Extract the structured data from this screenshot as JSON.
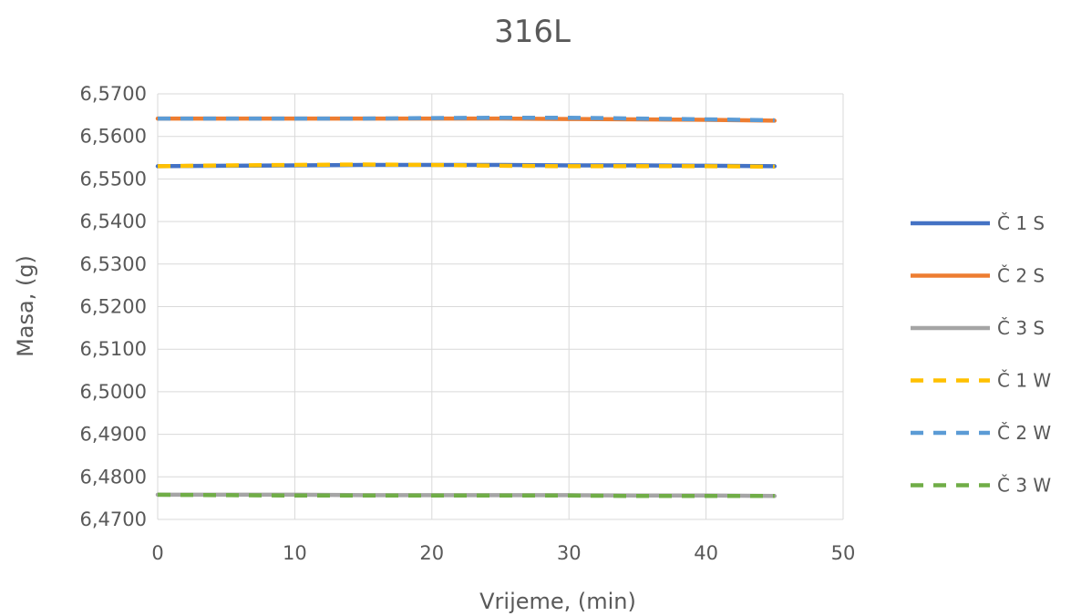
{
  "chart_data": {
    "type": "line",
    "title": "316L",
    "xlabel": "Vrijeme, (min)",
    "ylabel": "Masa, (g)",
    "xlim": [
      0,
      50
    ],
    "ylim": [
      6.47,
      6.57
    ],
    "xticks": [
      "0",
      "10",
      "20",
      "30",
      "40",
      "50"
    ],
    "yticks": [
      "6,4700",
      "6,4800",
      "6,4900",
      "6,5000",
      "6,5100",
      "6,5200",
      "6,5300",
      "6,5400",
      "6,5500",
      "6,5600",
      "6,5700"
    ],
    "grid": true,
    "legend_position": "right",
    "series": [
      {
        "name": "Č 1 S",
        "color": "#4472C4",
        "style": "solid",
        "x": [
          0,
          5,
          10,
          15,
          20,
          25,
          30,
          35,
          40,
          45
        ],
        "y": [
          6.553,
          6.5531,
          6.5532,
          6.5533,
          6.5533,
          6.5533,
          6.5532,
          6.5532,
          6.5531,
          6.553
        ]
      },
      {
        "name": "Č 2 S",
        "color": "#ED7D31",
        "style": "solid",
        "x": [
          0,
          5,
          10,
          15,
          20,
          25,
          30,
          35,
          40,
          45
        ],
        "y": [
          6.5642,
          6.5642,
          6.5642,
          6.5642,
          6.5642,
          6.5642,
          6.5641,
          6.564,
          6.5639,
          6.5637
        ]
      },
      {
        "name": "Č 3 S",
        "color": "#A5A5A5",
        "style": "solid",
        "x": [
          0,
          5,
          10,
          15,
          20,
          25,
          30,
          35,
          40,
          45
        ],
        "y": [
          6.4758,
          6.4758,
          6.4758,
          6.4757,
          6.4757,
          6.4757,
          6.4757,
          6.4756,
          6.4756,
          6.4755
        ]
      },
      {
        "name": "Č 1 W",
        "color": "#FFC000",
        "style": "dashed",
        "x": [
          0,
          5,
          10,
          15,
          20,
          25,
          30,
          35,
          40,
          45
        ],
        "y": [
          6.553,
          6.5532,
          6.5533,
          6.5534,
          6.5533,
          6.5531,
          6.553,
          6.553,
          6.553,
          6.5529
        ]
      },
      {
        "name": "Č 2 W",
        "color": "#5B9BD5",
        "style": "dashed",
        "x": [
          0,
          5,
          10,
          15,
          20,
          25,
          30,
          35,
          40,
          45
        ],
        "y": [
          6.5642,
          6.5642,
          6.5642,
          6.5642,
          6.5643,
          6.5644,
          6.5644,
          6.5642,
          6.564,
          6.5638
        ]
      },
      {
        "name": "Č 3 W",
        "color": "#70AD47",
        "style": "dashed",
        "x": [
          0,
          5,
          10,
          15,
          20,
          25,
          30,
          35,
          40,
          45
        ],
        "y": [
          6.4758,
          6.4757,
          6.4756,
          6.4756,
          6.4756,
          6.4756,
          6.4756,
          6.4755,
          6.4755,
          6.4755
        ]
      }
    ]
  }
}
